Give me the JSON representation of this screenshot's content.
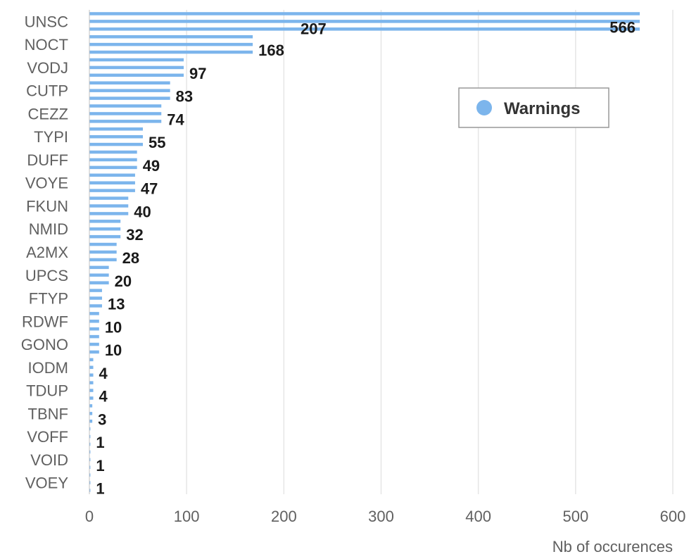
{
  "chart_data": {
    "type": "bar",
    "orientation": "horizontal",
    "categories": [
      "UNSC",
      "NOCT",
      "VODJ",
      "CUTP",
      "CEZZ",
      "TYPI",
      "DUFF",
      "VOYE",
      "FKUN",
      "NMID",
      "A2MX",
      "UPCS",
      "FTYP",
      "RDWF",
      "GONO",
      "IODM",
      "TDUP",
      "TBNF",
      "VOFF",
      "VOID",
      "VOEY"
    ],
    "series": [
      {
        "name": "Warnings",
        "color": "#7cb5ec",
        "values": [
          566,
          168,
          97,
          83,
          74,
          55,
          49,
          47,
          40,
          32,
          28,
          20,
          13,
          10,
          10,
          4,
          4,
          3,
          1,
          1,
          1
        ],
        "extra_value_labels": [
          {
            "category": "UNSC",
            "value": 207
          }
        ]
      }
    ],
    "xlabel": "Nb of occurences",
    "xlim": [
      0,
      600
    ],
    "xticks": [
      0,
      100,
      200,
      300,
      400,
      500,
      600
    ],
    "grid": true,
    "legend": {
      "entries": [
        "Warnings"
      ],
      "position": "top-right"
    }
  }
}
